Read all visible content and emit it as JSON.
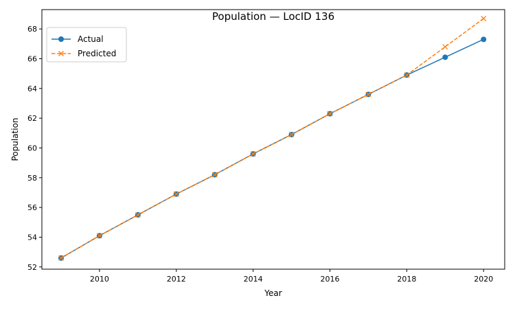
{
  "chart_data": {
    "type": "line",
    "title": "Population — LocID 136",
    "xlabel": "Year",
    "ylabel": "Population",
    "xlim": [
      2008.5,
      2020.55
    ],
    "ylim": [
      51.85,
      69.3
    ],
    "xticks": [
      2010,
      2012,
      2014,
      2016,
      2018,
      2020
    ],
    "yticks": [
      52,
      54,
      56,
      58,
      60,
      62,
      64,
      66,
      68
    ],
    "grid": false,
    "legend_position": "top-left",
    "series": [
      {
        "name": "Actual",
        "color": "#1f77b4",
        "marker": "circle",
        "line_style": "solid",
        "x": [
          2009,
          2010,
          2011,
          2012,
          2013,
          2014,
          2015,
          2016,
          2017,
          2018,
          2019,
          2020
        ],
        "values": [
          52.6,
          54.1,
          55.5,
          56.9,
          58.2,
          59.6,
          60.9,
          62.3,
          63.6,
          64.9,
          66.1,
          67.3
        ]
      },
      {
        "name": "Predicted",
        "color": "#ff7f0e",
        "marker": "x",
        "line_style": "dashed",
        "x": [
          2009,
          2010,
          2011,
          2012,
          2013,
          2014,
          2015,
          2016,
          2017,
          2018,
          2019,
          2020
        ],
        "values": [
          52.6,
          54.1,
          55.5,
          56.9,
          58.2,
          59.6,
          60.9,
          62.3,
          63.6,
          64.9,
          66.8,
          68.7
        ]
      }
    ]
  }
}
